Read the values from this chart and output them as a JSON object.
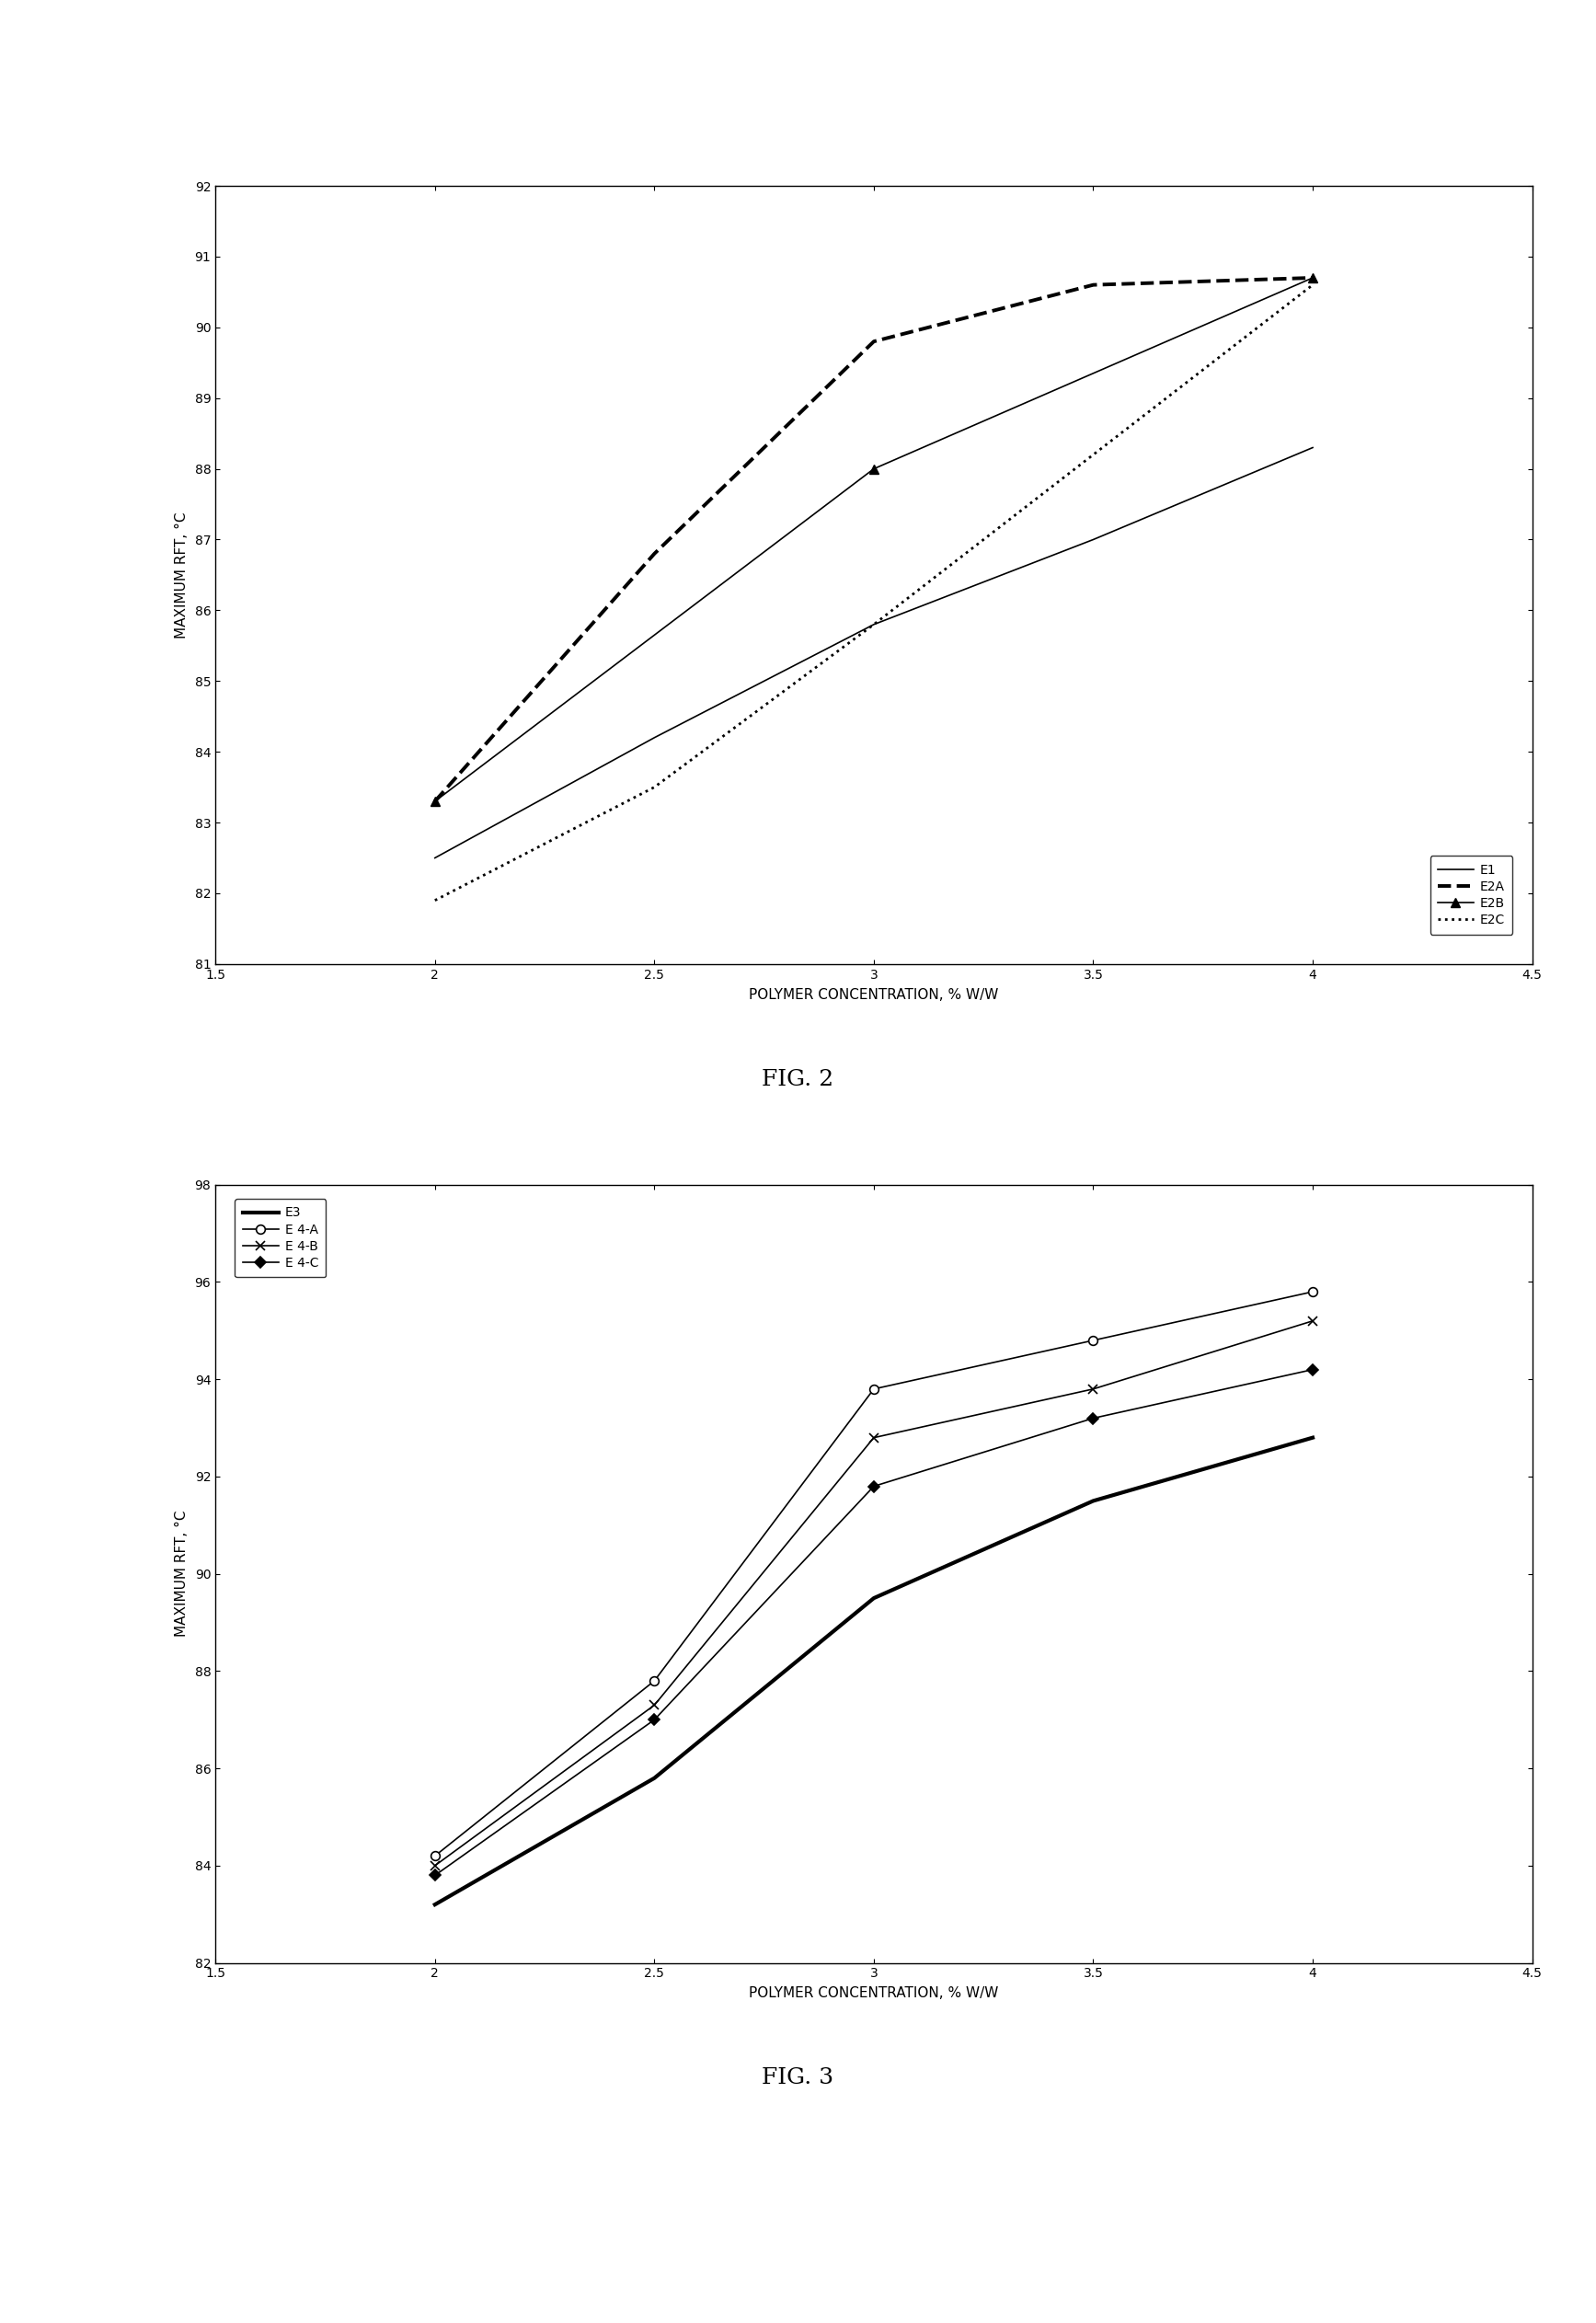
{
  "fig2": {
    "caption": "FIG. 2",
    "xlabel": "POLYMER CONCENTRATION, % W/W",
    "ylabel": "MAXIMUM RFT, °C",
    "xlim": [
      1.5,
      4.5
    ],
    "ylim": [
      81,
      92
    ],
    "yticks": [
      81,
      82,
      83,
      84,
      85,
      86,
      87,
      88,
      89,
      90,
      91,
      92
    ],
    "xticks": [
      1.5,
      2.0,
      2.5,
      3.0,
      3.5,
      4.0,
      4.5
    ],
    "series": [
      {
        "label": "E1",
        "x": [
          2.0,
          2.5,
          3.0,
          3.5,
          4.0
        ],
        "y": [
          82.5,
          84.2,
          85.8,
          87.0,
          88.3
        ],
        "linestyle": "solid",
        "linewidth": 1.2,
        "color": "black",
        "marker": null,
        "markersize": 0
      },
      {
        "label": "E2A",
        "x": [
          2.0,
          2.5,
          3.0,
          3.5,
          4.0
        ],
        "y": [
          83.3,
          86.8,
          89.8,
          90.6,
          90.7
        ],
        "linestyle": "dashed",
        "linewidth": 2.8,
        "color": "black",
        "marker": null,
        "markersize": 0
      },
      {
        "label": "E2B",
        "x": [
          2.0,
          3.0,
          4.0
        ],
        "y": [
          83.3,
          88.0,
          90.7
        ],
        "linestyle": "solid",
        "linewidth": 1.2,
        "color": "black",
        "marker": "^",
        "markersize": 7
      },
      {
        "label": "E2C",
        "x": [
          2.0,
          2.5,
          3.0,
          3.5,
          4.0
        ],
        "y": [
          81.9,
          83.5,
          85.8,
          88.2,
          90.6
        ],
        "linestyle": "dotted",
        "linewidth": 2.0,
        "color": "black",
        "marker": null,
        "markersize": 0
      }
    ]
  },
  "fig3": {
    "caption": "FIG. 3",
    "xlabel": "POLYMER CONCENTRATION, % W/W",
    "ylabel": "MAXIMUM RFT, °C",
    "xlim": [
      1.5,
      4.5
    ],
    "ylim": [
      82,
      98
    ],
    "yticks": [
      82,
      84,
      86,
      88,
      90,
      92,
      94,
      96,
      98
    ],
    "xticks": [
      1.5,
      2.0,
      2.5,
      3.0,
      3.5,
      4.0,
      4.5
    ],
    "series": [
      {
        "label": "E3",
        "x": [
          2.0,
          2.5,
          3.0,
          3.5,
          4.0
        ],
        "y": [
          83.2,
          85.8,
          89.5,
          91.5,
          92.8
        ],
        "linestyle": "solid",
        "linewidth": 3.0,
        "color": "black",
        "marker": null,
        "markersize": 0
      },
      {
        "label": "E 4-A",
        "x": [
          2.0,
          2.5,
          3.0,
          3.5,
          4.0
        ],
        "y": [
          84.2,
          87.8,
          93.8,
          94.8,
          95.8
        ],
        "linestyle": "solid",
        "linewidth": 1.2,
        "color": "black",
        "marker": "o",
        "markersize": 7
      },
      {
        "label": "E 4-B",
        "x": [
          2.0,
          2.5,
          3.0,
          3.5,
          4.0
        ],
        "y": [
          84.0,
          87.3,
          92.8,
          93.8,
          95.2
        ],
        "linestyle": "solid",
        "linewidth": 1.2,
        "color": "black",
        "marker": "x",
        "markersize": 7
      },
      {
        "label": "E 4-C",
        "x": [
          2.0,
          2.5,
          3.0,
          3.5,
          4.0
        ],
        "y": [
          83.8,
          87.0,
          91.8,
          93.2,
          94.2
        ],
        "linestyle": "solid",
        "linewidth": 1.2,
        "color": "black",
        "marker": "D",
        "markersize": 6
      }
    ]
  },
  "background_color": "#f0f0f0",
  "plot_bg_color": "#ffffff"
}
